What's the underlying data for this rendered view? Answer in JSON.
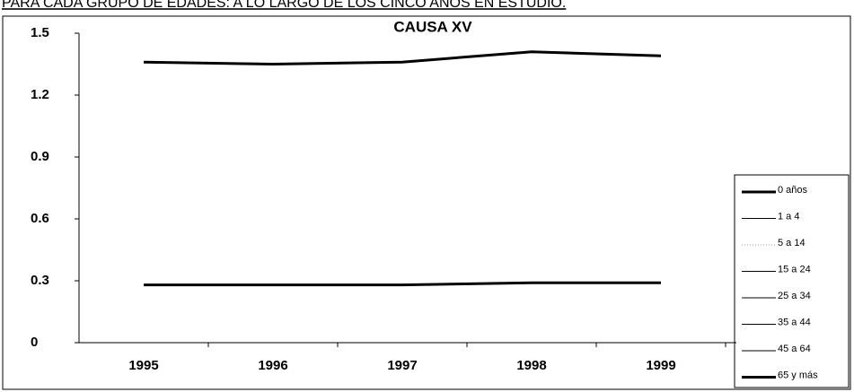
{
  "heading": "PARA CADA GRUPO DE EDADES: A LO LARGO DE LOS CINCO AÑOS EN ESTUDIO.",
  "chart_data": {
    "type": "line",
    "title": "CAUSA XV",
    "categories": [
      "1995",
      "1996",
      "1997",
      "1998",
      "1999"
    ],
    "ylim": [
      0,
      1.5
    ],
    "yticks": [
      0,
      0.3,
      0.6,
      0.9,
      1.2,
      1.5
    ],
    "grid": false,
    "legend": "right",
    "series": [
      {
        "name": "0 años",
        "color": "#000000",
        "width": 3,
        "values": [
          1.36,
          1.35,
          1.36,
          1.41,
          1.39
        ]
      },
      {
        "name": "1 a  4",
        "color": "#000000",
        "width": 1,
        "values": [
          null,
          null,
          null,
          null,
          null
        ]
      },
      {
        "name": "5 a 14",
        "color": "#999999",
        "width": 1,
        "dash": "1 2",
        "values": [
          null,
          null,
          null,
          null,
          null
        ]
      },
      {
        "name": "15 a 24",
        "color": "#000000",
        "width": 1,
        "values": [
          null,
          null,
          null,
          null,
          null
        ]
      },
      {
        "name": "25 a 34",
        "color": "#000000",
        "width": 1,
        "values": [
          null,
          null,
          null,
          null,
          null
        ]
      },
      {
        "name": "35 a 44",
        "color": "#000000",
        "width": 1,
        "values": [
          null,
          null,
          null,
          null,
          null
        ]
      },
      {
        "name": "45 a 64",
        "color": "#000000",
        "width": 1,
        "values": [
          null,
          null,
          null,
          null,
          null
        ]
      },
      {
        "name": "65 y más",
        "color": "#000000",
        "width": 3,
        "values": [
          0.28,
          0.28,
          0.28,
          0.29,
          0.29
        ]
      }
    ]
  }
}
